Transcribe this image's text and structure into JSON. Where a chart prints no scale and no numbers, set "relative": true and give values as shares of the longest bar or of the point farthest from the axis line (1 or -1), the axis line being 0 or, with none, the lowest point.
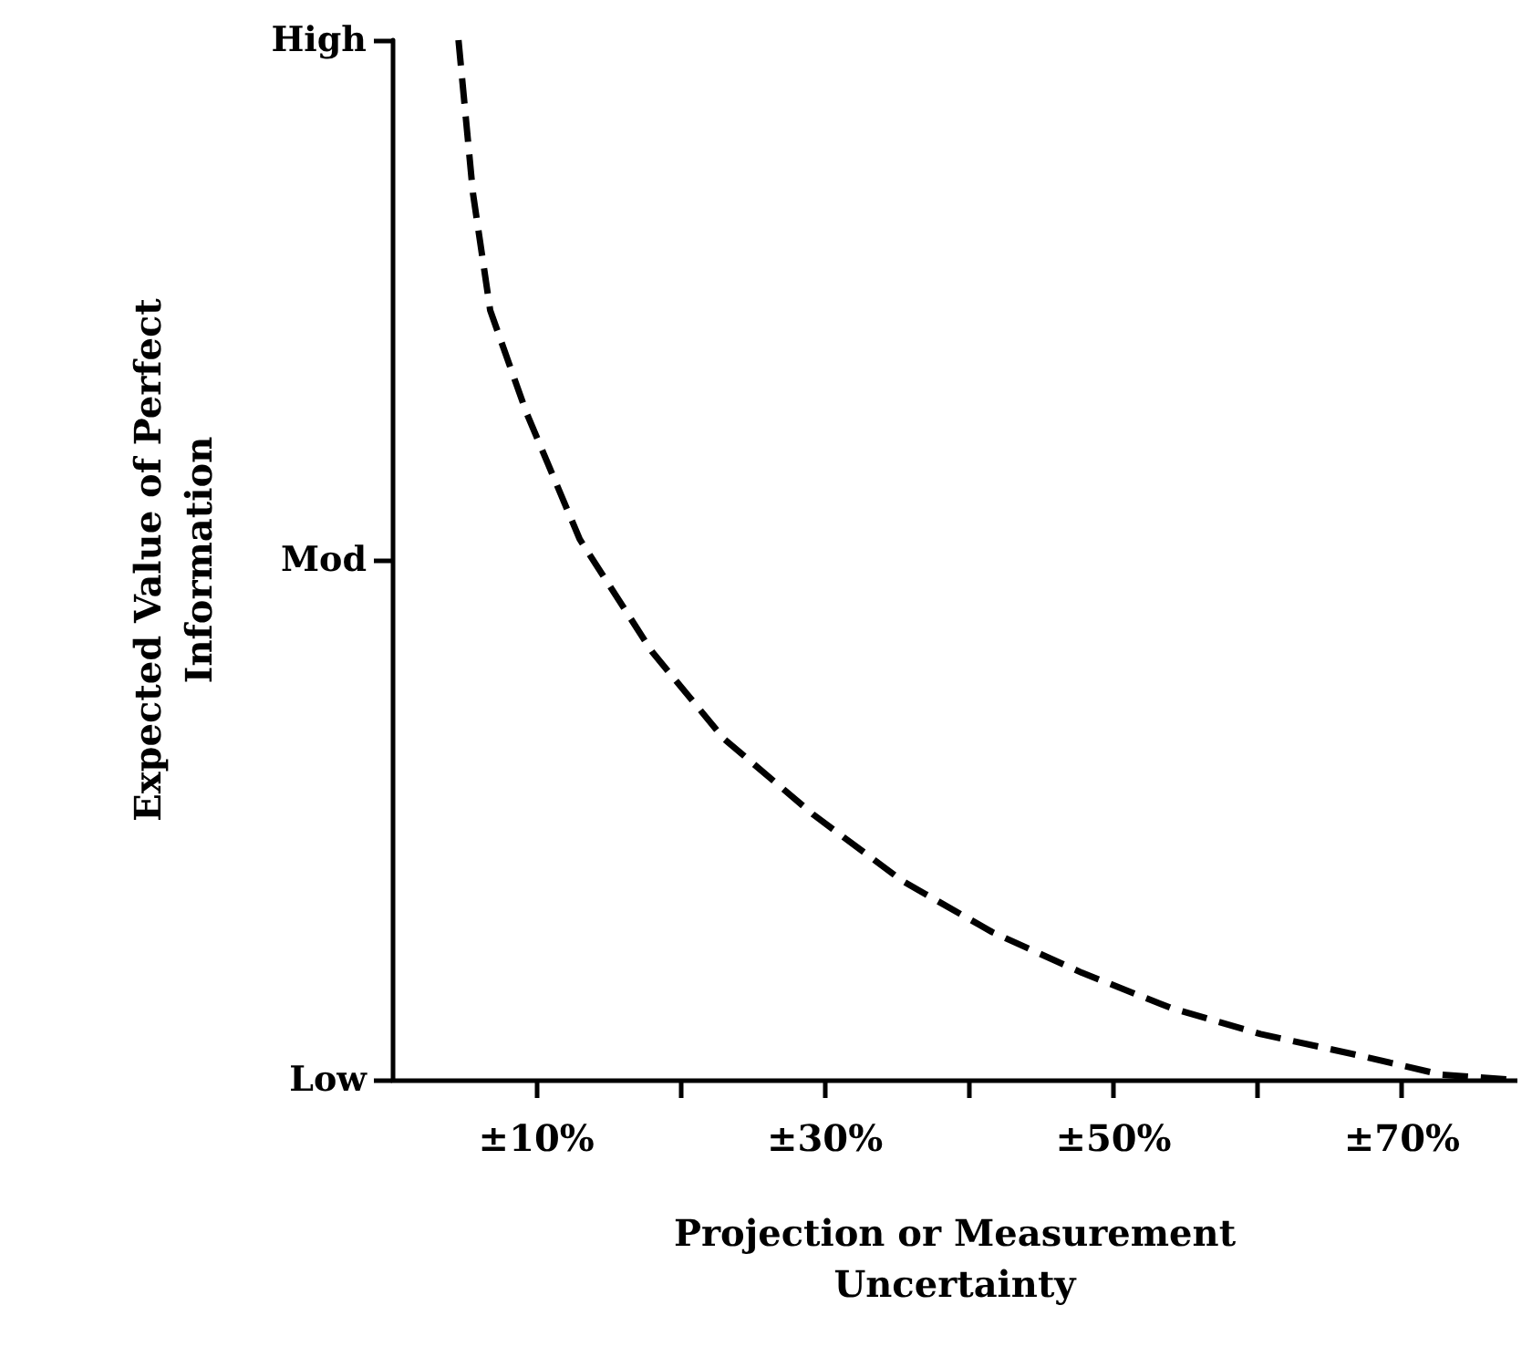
{
  "chart_data": {
    "type": "line",
    "xlabel": "Projection or Measurement\nUncertainty",
    "ylabel": "Expected Value of Perfect\nInformation",
    "relative": true,
    "xlim": [
      0,
      78
    ],
    "xticks": [
      {
        "value": 10,
        "label": "±10%"
      },
      {
        "value": 20,
        "label": null
      },
      {
        "value": 30,
        "label": "±30%"
      },
      {
        "value": 40,
        "label": null
      },
      {
        "value": 50,
        "label": "±50%"
      },
      {
        "value": 60,
        "label": null
      },
      {
        "value": 70,
        "label": "±70%"
      }
    ],
    "annotations": [
      "Low",
      "Mod",
      "High"
    ],
    "series": [
      {
        "color": "#000000",
        "x": [
          4.6,
          5.6,
          6.8,
          9.3,
          13.0,
          18.0,
          23.0,
          29.2,
          35.4,
          41.6,
          47.8,
          54.0,
          60.2,
          66.5,
          72.7,
          77.6
        ],
        "values": [
          1,
          0.853,
          0.74,
          0.642,
          0.52,
          0.412,
          0.328,
          0.255,
          0.191,
          0.142,
          0.103,
          0.069,
          0.044,
          0.025,
          0.005,
          0
        ]
      }
    ],
    "grid": false,
    "marker": "none",
    "line_style": "dashed"
  }
}
